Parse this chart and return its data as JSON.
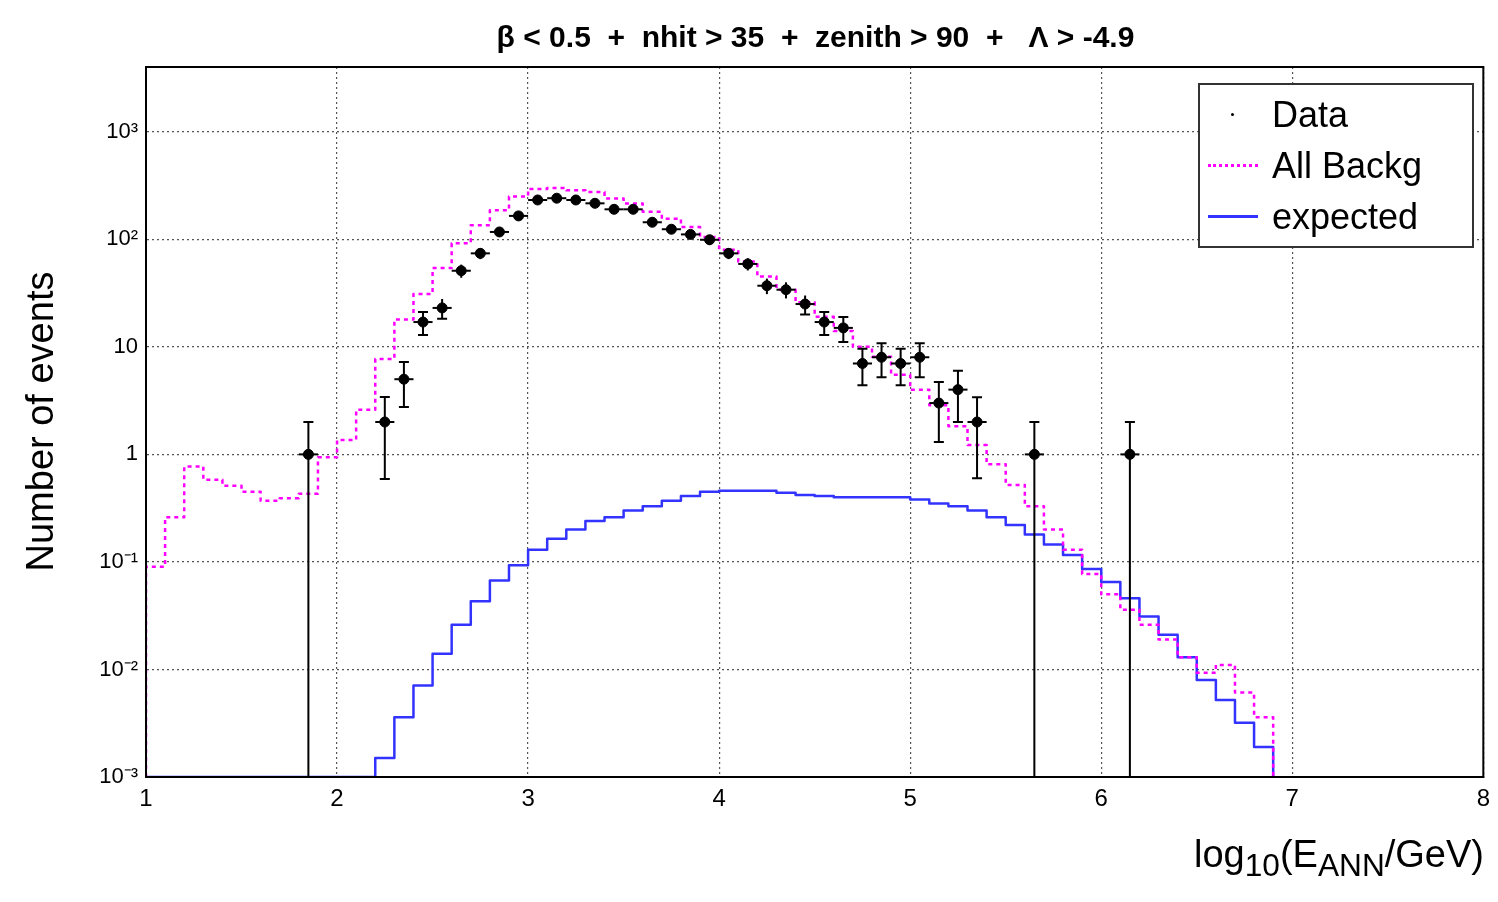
{
  "chart_data": {
    "type": "histogram",
    "title": "β < 0.5  +  nhit > 35  +  zenith > 90  +   Λ > -4.9",
    "xlabel": "log$_{10}$(E$_{ANN}$/GeV)",
    "ylabel": "Number of events",
    "bins": [
      1,
      1.1,
      1.2,
      1.3,
      1.4,
      1.5,
      1.6,
      1.7,
      1.8,
      1.9,
      2,
      2.1,
      2.2,
      2.3,
      2.4,
      2.5,
      2.6,
      2.7,
      2.8,
      2.9,
      3,
      3.1,
      3.2,
      3.3,
      3.4,
      3.5,
      3.6,
      3.7,
      3.8,
      3.9,
      4,
      4.1,
      4.2,
      4.3,
      4.4,
      4.5,
      4.6,
      4.7,
      4.8,
      4.9,
      5,
      5.1,
      5.2,
      5.3,
      5.4,
      5.5,
      5.6,
      5.7,
      5.8,
      5.9,
      6,
      6.1,
      6.2,
      6.3,
      6.4,
      6.5,
      6.6,
      6.7,
      6.8,
      6.9
    ],
    "series": [
      {
        "name": "Data",
        "type": "scatter",
        "color": "#000000",
        "marker": "circle",
        "x": [
          1.85,
          2.25,
          2.35,
          2.45,
          2.55,
          2.65,
          2.75,
          2.85,
          2.95,
          3.05,
          3.15,
          3.25,
          3.35,
          3.45,
          3.55,
          3.65,
          3.75,
          3.85,
          3.95,
          4.05,
          4.15,
          4.25,
          4.35,
          4.45,
          4.55,
          4.65,
          4.75,
          4.85,
          4.95,
          5.05,
          5.15,
          5.25,
          5.35,
          5.65,
          6.15
        ],
        "values": [
          1,
          2,
          5,
          17,
          23,
          51,
          74,
          117,
          165,
          232,
          241,
          232,
          216,
          190,
          190,
          144,
          124,
          111,
          99,
          74,
          59,
          37,
          34,
          25,
          17,
          15,
          7,
          8,
          7,
          8,
          3,
          4,
          2,
          1,
          1
        ],
        "errors": [
          [
            0.999,
            1
          ],
          1.41,
          2.24,
          4.12,
          4.8,
          7.14,
          8.6,
          10.8,
          12.8,
          15.2,
          15.5,
          15.2,
          14.7,
          13.8,
          13.8,
          12,
          11.1,
          10.5,
          9.95,
          8.6,
          7.7,
          6.1,
          5.8,
          5,
          4.1,
          3.9,
          2.6,
          2.8,
          2.6,
          2.8,
          1.7,
          2,
          1.4,
          [
            0.999,
            1
          ],
          [
            0.999,
            1
          ]
        ],
        "xerrors": [
          0.05,
          0.05,
          0.05,
          0.05,
          0.05,
          0.05,
          0.05,
          0.05,
          0.05,
          0.05,
          0.05,
          0.05,
          0.05,
          0.05,
          0.05,
          0.05,
          0.05,
          0.05,
          0.05,
          0.05,
          0.05,
          0.05,
          0.05,
          0.05,
          0.05,
          0.05,
          0.05,
          0.05,
          0.05,
          0.05,
          0.05,
          0.05,
          0.05,
          0.05,
          0.05
        ]
      },
      {
        "name": "All Backg",
        "color": "#ff00ff",
        "line_style": "dotted",
        "values": [
          0.09,
          0.26,
          0.77,
          0.58,
          0.51,
          0.45,
          0.37,
          0.39,
          0.43,
          0.94,
          1.36,
          2.6,
          7.7,
          18,
          31,
          54,
          92,
          135,
          186,
          250,
          294,
          300,
          285,
          275,
          240,
          215,
          180,
          155,
          130,
          105,
          80,
          62,
          45,
          34,
          26,
          19,
          14,
          10,
          8.1,
          5.5,
          4.0,
          2.86,
          1.83,
          1.22,
          0.81,
          0.52,
          0.33,
          0.2,
          0.13,
          0.077,
          0.05,
          0.036,
          0.026,
          0.019,
          0.013,
          0.0093,
          0.011,
          0.0061,
          0.0036
        ]
      },
      {
        "name": "expected",
        "color": "#3333ff",
        "line_style": "solid",
        "values": [
          0.001,
          0.001,
          0.001,
          0.001,
          0.001,
          0.001,
          0.001,
          0.001,
          0.001,
          0.001,
          0.001,
          0.001,
          0.0015,
          0.0036,
          0.0071,
          0.014,
          0.026,
          0.043,
          0.067,
          0.093,
          0.13,
          0.164,
          0.2,
          0.24,
          0.26,
          0.3,
          0.33,
          0.37,
          0.41,
          0.45,
          0.46,
          0.46,
          0.46,
          0.44,
          0.42,
          0.41,
          0.4,
          0.4,
          0.4,
          0.4,
          0.38,
          0.35,
          0.33,
          0.3,
          0.26,
          0.22,
          0.18,
          0.145,
          0.116,
          0.086,
          0.065,
          0.046,
          0.031,
          0.021,
          0.013,
          0.008,
          0.0052,
          0.0032,
          0.0019
        ]
      }
    ],
    "xlim": [
      1,
      8
    ],
    "ylim": [
      0.001,
      4000
    ],
    "xticks": [
      1,
      2,
      3,
      4,
      5,
      6,
      7,
      8
    ],
    "yticks": [
      {
        "value": 0.001,
        "label": "10⁻³"
      },
      {
        "value": 0.01,
        "label": "10⁻²"
      },
      {
        "value": 0.1,
        "label": "10⁻¹"
      },
      1,
      10,
      {
        "value": 100,
        "label": "10²"
      },
      {
        "value": 1000,
        "label": "10³"
      }
    ],
    "log": "y",
    "grid": true,
    "legend": "top right"
  }
}
